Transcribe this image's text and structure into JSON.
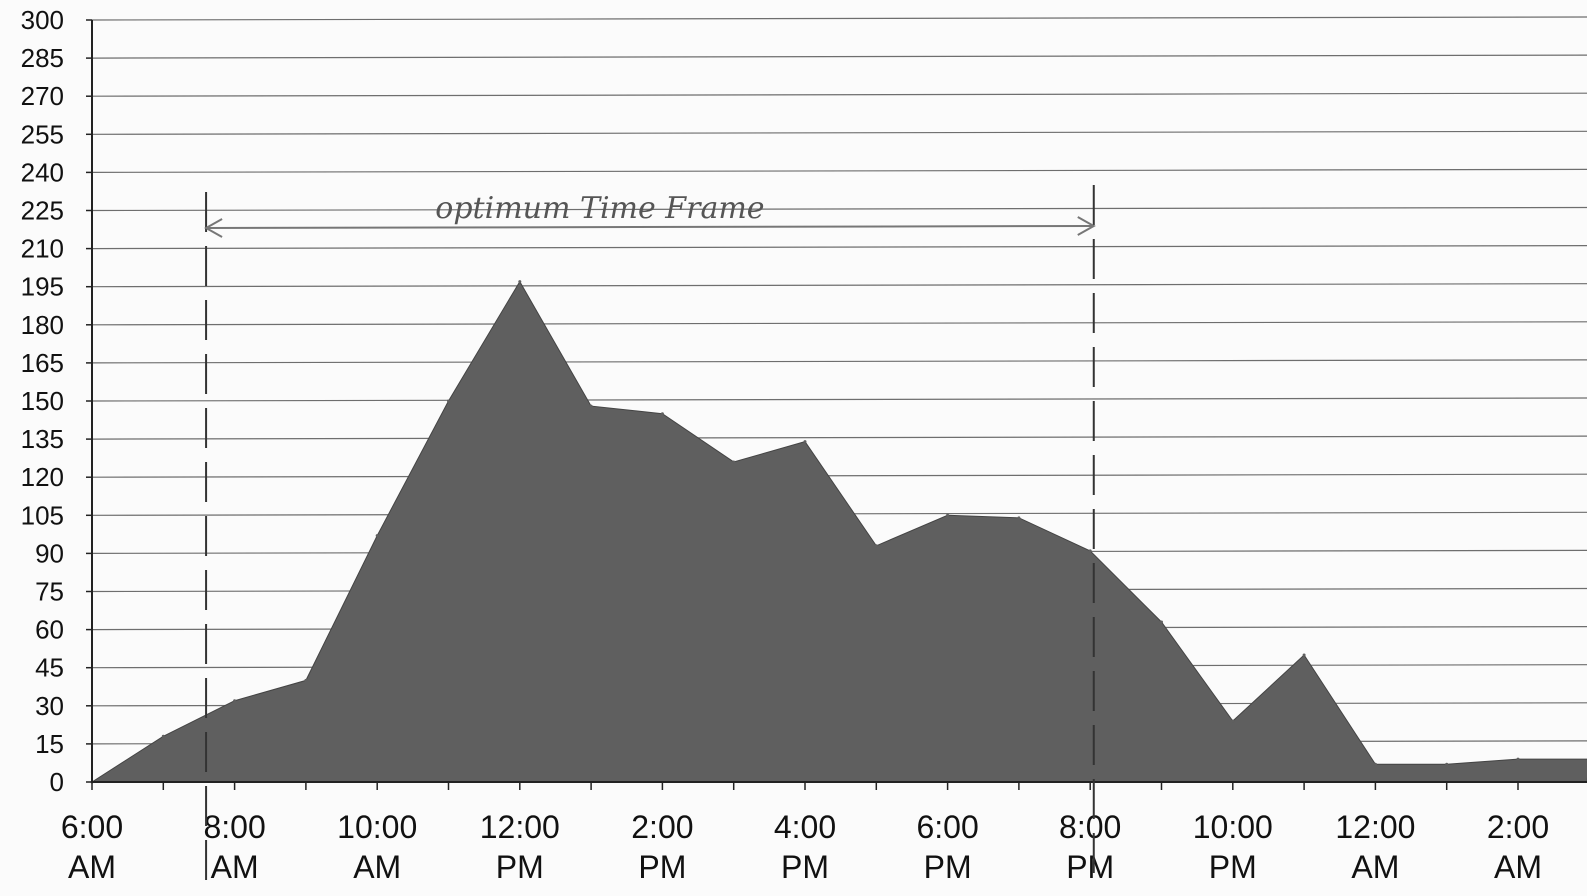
{
  "chart_data": {
    "type": "area",
    "title": "",
    "xlabel": "",
    "ylabel": "",
    "ylim": [
      0,
      300
    ],
    "y_ticks": [
      0,
      15,
      30,
      45,
      60,
      75,
      90,
      105,
      120,
      135,
      150,
      165,
      180,
      195,
      210,
      225,
      240,
      255,
      270,
      285,
      300
    ],
    "grid": true,
    "x_tick_labels": [
      {
        "hour": 6,
        "line1": "6:00",
        "line2": "AM"
      },
      {
        "hour": 8,
        "line1": "8:00",
        "line2": "AM"
      },
      {
        "hour": 10,
        "line1": "10:00",
        "line2": "AM"
      },
      {
        "hour": 12,
        "line1": "12:00",
        "line2": "PM"
      },
      {
        "hour": 14,
        "line1": "2:00",
        "line2": "PM"
      },
      {
        "hour": 16,
        "line1": "4:00",
        "line2": "PM"
      },
      {
        "hour": 18,
        "line1": "6:00",
        "line2": "PM"
      },
      {
        "hour": 20,
        "line1": "8:00",
        "line2": "PM"
      },
      {
        "hour": 22,
        "line1": "10:00",
        "line2": "PM"
      },
      {
        "hour": 24,
        "line1": "12:00",
        "line2": "AM"
      },
      {
        "hour": 26,
        "line1": "2:00",
        "line2": "AM"
      }
    ],
    "x_hours": [
      6,
      7,
      8,
      9,
      10,
      11,
      12,
      13,
      14,
      15,
      16,
      17,
      18,
      19,
      20,
      21,
      22,
      23,
      24,
      25,
      26,
      27
    ],
    "values": [
      0,
      18,
      32,
      40,
      97,
      150,
      197,
      148,
      145,
      126,
      134,
      93,
      105,
      104,
      91,
      63,
      24,
      50,
      7,
      7,
      9,
      9
    ],
    "colors": {
      "fill": "#5f5f5f",
      "grid": "#6e6e6e",
      "annotation": "#777777"
    },
    "annotation": {
      "text": "optimum Time Frame",
      "start_hour": 7.6,
      "end_hour": 20.05
    }
  }
}
